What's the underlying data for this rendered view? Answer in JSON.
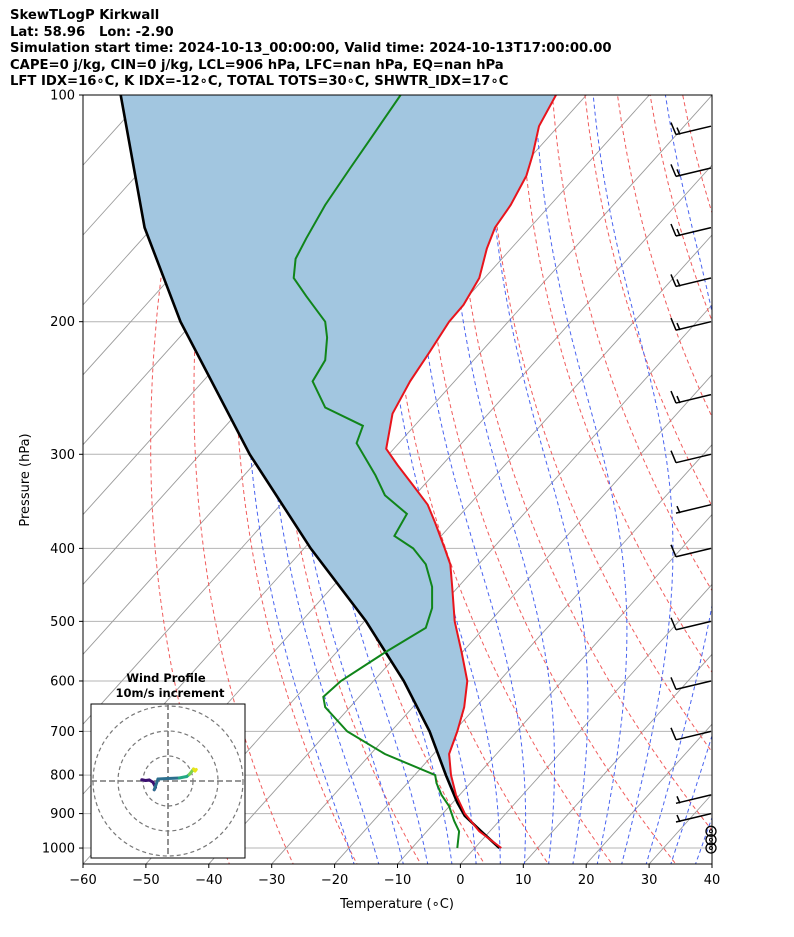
{
  "header": {
    "line1": "SkewTLogP Kirkwall",
    "line2": "Lat: 58.96   Lon: -2.90",
    "line3": "Simulation start time: 2024-10-13_00:00:00, Valid time: 2024-10-13T17:00:00.00",
    "line4": "CAPE=0 j/kg, CIN=0 j/kg, LCL=906 hPa, LFC=nan hPa, EQ=nan hPa",
    "line5": "LFT IDX=16∘C, K IDX=-12∘C, TOTAL TOTS=30∘C, SHWTR_IDX=17∘C"
  },
  "colors": {
    "temperature": "#e8141c",
    "dewpoint": "#10851a",
    "parcel": "#000000",
    "cape_shade": "#a2c6e0",
    "dry_adiabat": "#f05c5c",
    "moist_adiabat": "#4a64f0",
    "isotherm": "#9a9a9a",
    "isobar": "#b4b4b4",
    "barb": "#000000"
  },
  "chart_data": {
    "type": "skew-t log-p",
    "xlabel": "Temperature (∘C)",
    "ylabel": "Pressure (hPa)",
    "xlim": [
      -60,
      40
    ],
    "ylim": [
      1050,
      100
    ],
    "x_ticks": [
      "−60",
      "−50",
      "−40",
      "−30",
      "−20",
      "−10",
      "0",
      "10",
      "20",
      "30",
      "40"
    ],
    "y_ticks": [
      "100",
      "200",
      "300",
      "400",
      "500",
      "600",
      "700",
      "800",
      "900",
      "1000"
    ],
    "grid": true,
    "temperature_profile": [
      {
        "p": 1000,
        "x": 6.5
      },
      {
        "p": 950,
        "x": 3.0
      },
      {
        "p": 900,
        "x": 0.7
      },
      {
        "p": 850,
        "x": -0.7
      },
      {
        "p": 800,
        "x": -1.5
      },
      {
        "p": 750,
        "x": -1.8
      },
      {
        "p": 700,
        "x": -0.5
      },
      {
        "p": 650,
        "x": 0.6
      },
      {
        "p": 600,
        "x": 1.1
      },
      {
        "p": 550,
        "x": 0.2
      },
      {
        "p": 500,
        "x": -0.9
      },
      {
        "p": 450,
        "x": -1.3
      },
      {
        "p": 420,
        "x": -1.6
      },
      {
        "p": 400,
        "x": -2.5
      },
      {
        "p": 370,
        "x": -4.0
      },
      {
        "p": 350,
        "x": -5.2
      },
      {
        "p": 330,
        "x": -7.5
      },
      {
        "p": 310,
        "x": -10.0
      },
      {
        "p": 295,
        "x": -11.8
      },
      {
        "p": 280,
        "x": -11.3
      },
      {
        "p": 265,
        "x": -10.8
      },
      {
        "p": 240,
        "x": -8.0
      },
      {
        "p": 220,
        "x": -5.0
      },
      {
        "p": 200,
        "x": -1.8
      },
      {
        "p": 190,
        "x": 0.5
      },
      {
        "p": 175,
        "x": 3.0
      },
      {
        "p": 160,
        "x": 4.2
      },
      {
        "p": 150,
        "x": 5.5
      },
      {
        "p": 140,
        "x": 8.0
      },
      {
        "p": 128,
        "x": 10.5
      },
      {
        "p": 120,
        "x": 11.5
      },
      {
        "p": 110,
        "x": 12.5
      },
      {
        "p": 100,
        "x": 15.2
      }
    ],
    "dewpoint_profile": [
      {
        "p": 1000,
        "x": -0.5
      },
      {
        "p": 950,
        "x": -0.2
      },
      {
        "p": 920,
        "x": -1.0
      },
      {
        "p": 880,
        "x": -1.8
      },
      {
        "p": 850,
        "x": -3.0
      },
      {
        "p": 820,
        "x": -3.8
      },
      {
        "p": 800,
        "x": -4.0
      },
      {
        "p": 750,
        "x": -12.0
      },
      {
        "p": 700,
        "x": -18.0
      },
      {
        "p": 650,
        "x": -21.5
      },
      {
        "p": 630,
        "x": -21.8
      },
      {
        "p": 600,
        "x": -19.0
      },
      {
        "p": 550,
        "x": -12.0
      },
      {
        "p": 510,
        "x": -5.5
      },
      {
        "p": 480,
        "x": -4.5
      },
      {
        "p": 450,
        "x": -4.5
      },
      {
        "p": 420,
        "x": -5.5
      },
      {
        "p": 400,
        "x": -7.5
      },
      {
        "p": 385,
        "x": -10.5
      },
      {
        "p": 360,
        "x": -8.5
      },
      {
        "p": 340,
        "x": -12.0
      },
      {
        "p": 320,
        "x": -13.5
      },
      {
        "p": 290,
        "x": -16.5
      },
      {
        "p": 275,
        "x": -15.5
      },
      {
        "p": 260,
        "x": -21.5
      },
      {
        "p": 240,
        "x": -23.5
      },
      {
        "p": 225,
        "x": -21.5
      },
      {
        "p": 210,
        "x": -21.2
      },
      {
        "p": 200,
        "x": -21.5
      },
      {
        "p": 185,
        "x": -24.5
      },
      {
        "p": 175,
        "x": -26.5
      },
      {
        "p": 165,
        "x": -26.2
      },
      {
        "p": 155,
        "x": -24.5
      },
      {
        "p": 140,
        "x": -21.5
      },
      {
        "p": 125,
        "x": -17.5
      },
      {
        "p": 115,
        "x": -14.5
      },
      {
        "p": 100,
        "x": -9.5
      }
    ],
    "parcel_profile": [
      {
        "p": 1000,
        "x": 6.2
      },
      {
        "p": 950,
        "x": 3.3
      },
      {
        "p": 906,
        "x": 0.7
      },
      {
        "p": 870,
        "x": -0.5
      },
      {
        "p": 800,
        "x": -2.3
      },
      {
        "p": 700,
        "x": -4.9
      },
      {
        "p": 600,
        "x": -9.0
      },
      {
        "p": 500,
        "x": -15.0
      },
      {
        "p": 400,
        "x": -23.8
      },
      {
        "p": 300,
        "x": -33.5
      },
      {
        "p": 200,
        "x": -44.5
      },
      {
        "p": 150,
        "x": -50.2
      },
      {
        "p": 100,
        "x": -54.0
      }
    ],
    "wind_barbs": [
      {
        "p": 1000,
        "speed_kt": 0
      },
      {
        "p": 975,
        "speed_kt": 0
      },
      {
        "p": 950,
        "speed_kt": 0
      },
      {
        "p": 900,
        "speed_kt": 5
      },
      {
        "p": 850,
        "speed_kt": 5
      },
      {
        "p": 700,
        "speed_kt": 10
      },
      {
        "p": 600,
        "speed_kt": 10
      },
      {
        "p": 500,
        "speed_kt": 10
      },
      {
        "p": 400,
        "speed_kt": 10
      },
      {
        "p": 350,
        "speed_kt": 5
      },
      {
        "p": 300,
        "speed_kt": 10
      },
      {
        "p": 250,
        "speed_kt": 15
      },
      {
        "p": 200,
        "speed_kt": 15
      },
      {
        "p": 175,
        "speed_kt": 15
      },
      {
        "p": 150,
        "speed_kt": 15
      },
      {
        "p": 125,
        "speed_kt": 15
      },
      {
        "p": 110,
        "speed_kt": 15
      }
    ],
    "hodograph": {
      "title": "Wind Profile",
      "subtitle": "10m/s increment",
      "points": [
        [
          -10.5,
          0.5
        ],
        [
          -9,
          0.2
        ],
        [
          -7.5,
          0.4
        ],
        [
          -6,
          -0.5
        ],
        [
          -5,
          -2.5
        ],
        [
          -5.5,
          -3.5
        ],
        [
          -4,
          0.8
        ],
        [
          0,
          1.0
        ],
        [
          4.5,
          1.2
        ],
        [
          7.5,
          1.8
        ],
        [
          8.5,
          2.6
        ],
        [
          9.5,
          3.8
        ],
        [
          10.2,
          4.8
        ],
        [
          10.8,
          4.0
        ],
        [
          11.3,
          4.6
        ]
      ]
    }
  }
}
